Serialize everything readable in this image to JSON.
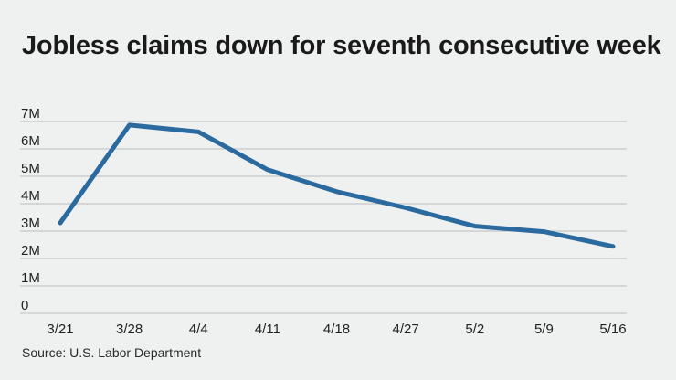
{
  "chart_data": {
    "type": "line",
    "title": "Jobless claims down for seventh consecutive week",
    "source": "Source: U.S. Labor Department",
    "categories": [
      "3/21",
      "3/28",
      "4/4",
      "4/11",
      "4/18",
      "4/27",
      "5/2",
      "5/9",
      "5/16"
    ],
    "series": [
      {
        "values": [
          3.3,
          6.87,
          6.62,
          5.24,
          4.44,
          3.85,
          3.18,
          2.98,
          2.44
        ]
      }
    ],
    "y_ticks": [
      "0",
      "1M",
      "2M",
      "3M",
      "4M",
      "5M",
      "6M",
      "7M"
    ],
    "ylim": [
      0,
      7
    ],
    "xlabel": "",
    "ylabel": "",
    "grid": true,
    "line_color": "#2a6a9e",
    "grid_color": "#b9bcbe"
  }
}
